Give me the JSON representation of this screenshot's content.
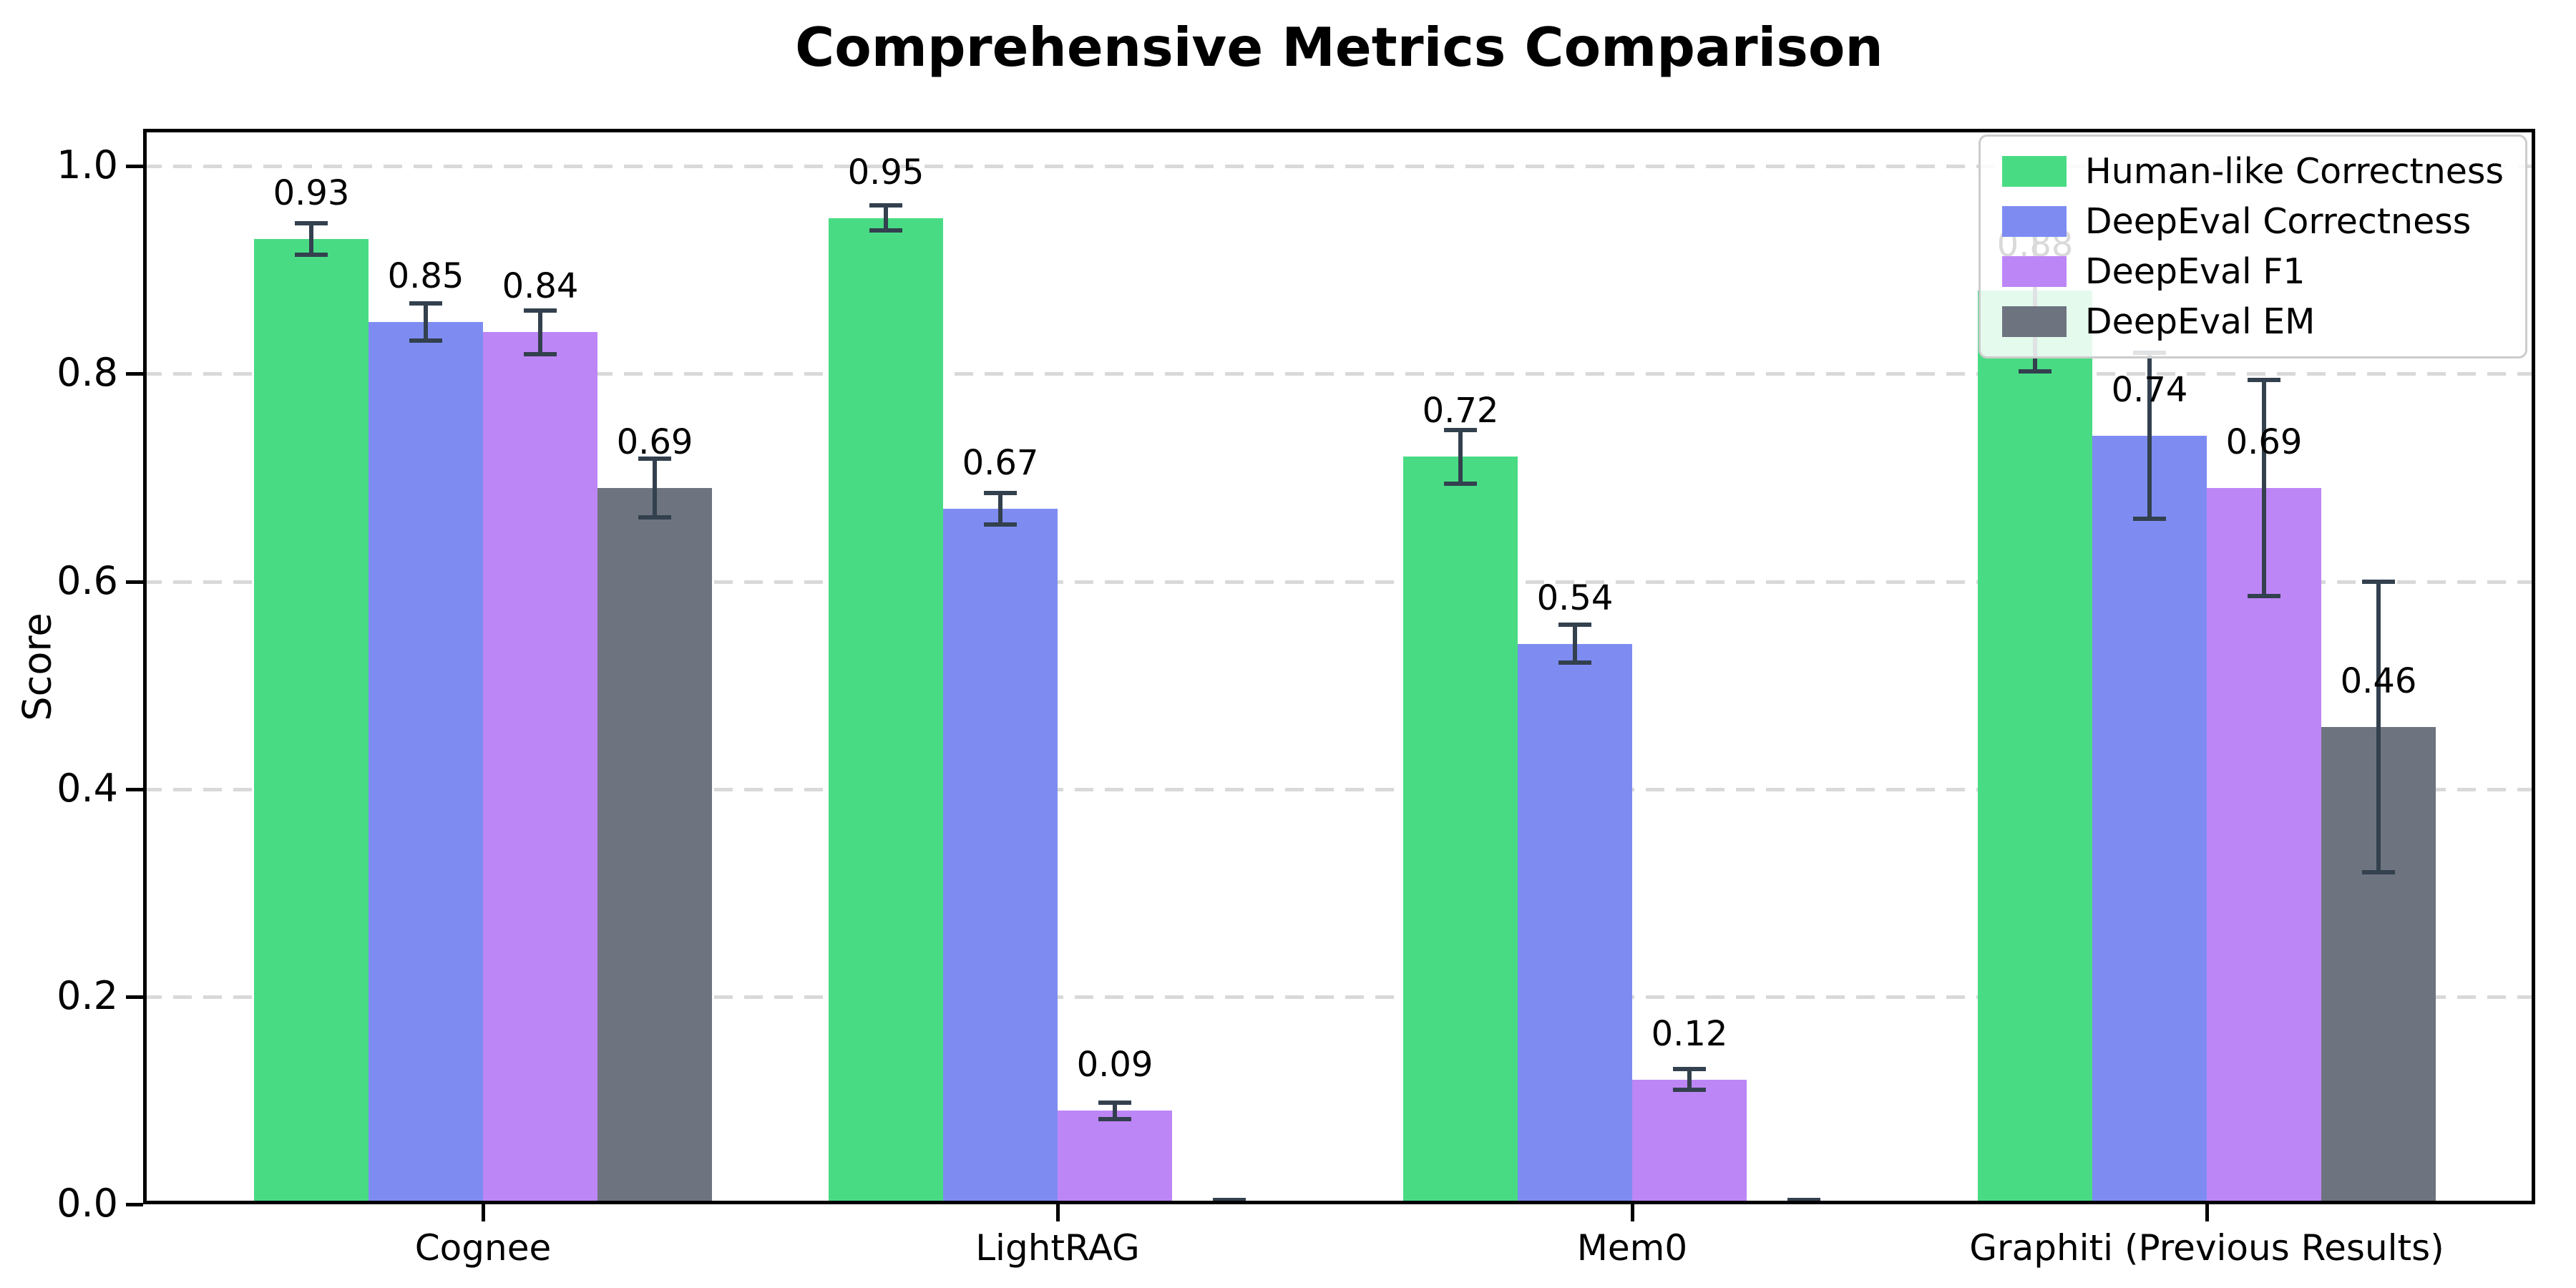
{
  "chart_data": {
    "type": "bar",
    "title": "Comprehensive Metrics Comparison",
    "ylabel": "Score",
    "xlabel": "",
    "categories": [
      "Cognee",
      "LightRAG",
      "Mem0",
      "Graphiti (Previous Results)"
    ],
    "series": [
      {
        "name": "Human-like Correctness",
        "color": "#49db84",
        "values": [
          0.93,
          0.95,
          0.72,
          0.88
        ],
        "errors": [
          0.015,
          0.012,
          0.026,
          0.078
        ]
      },
      {
        "name": "DeepEval Correctness",
        "color": "#7e8cf2",
        "values": [
          0.85,
          0.67,
          0.54,
          0.74
        ],
        "errors": [
          0.018,
          0.015,
          0.018,
          0.08
        ]
      },
      {
        "name": "DeepEval F1",
        "color": "#bd86f6",
        "values": [
          0.84,
          0.09,
          0.12,
          0.69
        ],
        "errors": [
          0.021,
          0.008,
          0.01,
          0.104
        ]
      },
      {
        "name": "DeepEval EM",
        "color": "#6d7480",
        "values": [
          0.69,
          0.0,
          0.0,
          0.46
        ],
        "errors": [
          0.028,
          0.004,
          0.004,
          0.14
        ]
      }
    ],
    "yticks": [
      "0.0",
      "0.2",
      "0.4",
      "0.6",
      "0.8",
      "1.0"
    ],
    "ylim": [
      0,
      1.036
    ],
    "grid": "horizontal-dashed",
    "legend_position": "upper-right",
    "bar_labels": {
      "format": "two-decimals",
      "shown_only_when_positive": true
    }
  },
  "style": {
    "errorbar_color": "#33404e",
    "grid_color": "#d9d9d9",
    "spine_color": "#000000",
    "background": "#ffffff",
    "legend_border": "#cccccc"
  }
}
